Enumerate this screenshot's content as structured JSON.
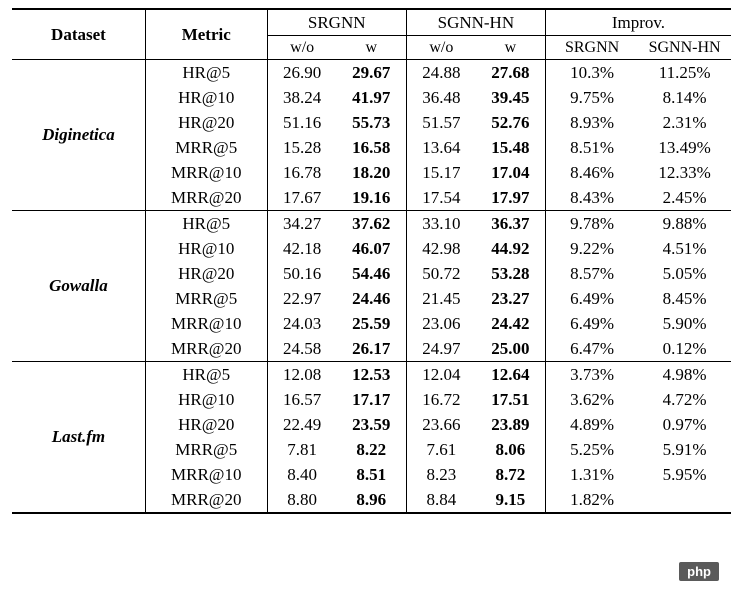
{
  "header": {
    "dataset": "Dataset",
    "metric": "Metric",
    "srgnn": "SRGNN",
    "sgnnhn": "SGNN-HN",
    "improv": "Improv.",
    "wo": "w/o",
    "w": "w",
    "srgnn_lbl": "SRGNN",
    "sgnnhn_lbl": "SGNN-HN"
  },
  "colors": {
    "text": "#000000",
    "background": "#ffffff",
    "rule": "#000000",
    "badge_bg": "#5a5a5a",
    "badge_text": "#ffffff"
  },
  "typography": {
    "font_family": "Georgia, Times New Roman, serif",
    "font_size": 17,
    "dataset_style": "bold italic",
    "value_bold_col": "w"
  },
  "datasets": [
    {
      "name": "Diginetica",
      "rows": [
        {
          "metric": "HR@5",
          "srgnn_wo": "26.90",
          "srgnn_w": "29.67",
          "sgnn_wo": "24.88",
          "sgnn_w": "27.68",
          "imp_srgnn": "10.3%",
          "imp_sgnn": "11.25%"
        },
        {
          "metric": "HR@10",
          "srgnn_wo": "38.24",
          "srgnn_w": "41.97",
          "sgnn_wo": "36.48",
          "sgnn_w": "39.45",
          "imp_srgnn": "9.75%",
          "imp_sgnn": "8.14%"
        },
        {
          "metric": "HR@20",
          "srgnn_wo": "51.16",
          "srgnn_w": "55.73",
          "sgnn_wo": "51.57",
          "sgnn_w": "52.76",
          "imp_srgnn": "8.93%",
          "imp_sgnn": "2.31%"
        },
        {
          "metric": "MRR@5",
          "srgnn_wo": "15.28",
          "srgnn_w": "16.58",
          "sgnn_wo": "13.64",
          "sgnn_w": "15.48",
          "imp_srgnn": "8.51%",
          "imp_sgnn": "13.49%"
        },
        {
          "metric": "MRR@10",
          "srgnn_wo": "16.78",
          "srgnn_w": "18.20",
          "sgnn_wo": "15.17",
          "sgnn_w": "17.04",
          "imp_srgnn": "8.46%",
          "imp_sgnn": "12.33%"
        },
        {
          "metric": "MRR@20",
          "srgnn_wo": "17.67",
          "srgnn_w": "19.16",
          "sgnn_wo": "17.54",
          "sgnn_w": "17.97",
          "imp_srgnn": "8.43%",
          "imp_sgnn": "2.45%"
        }
      ]
    },
    {
      "name": "Gowalla",
      "rows": [
        {
          "metric": "HR@5",
          "srgnn_wo": "34.27",
          "srgnn_w": "37.62",
          "sgnn_wo": "33.10",
          "sgnn_w": "36.37",
          "imp_srgnn": "9.78%",
          "imp_sgnn": "9.88%"
        },
        {
          "metric": "HR@10",
          "srgnn_wo": "42.18",
          "srgnn_w": "46.07",
          "sgnn_wo": "42.98",
          "sgnn_w": "44.92",
          "imp_srgnn": "9.22%",
          "imp_sgnn": "4.51%"
        },
        {
          "metric": "HR@20",
          "srgnn_wo": "50.16",
          "srgnn_w": "54.46",
          "sgnn_wo": "50.72",
          "sgnn_w": "53.28",
          "imp_srgnn": "8.57%",
          "imp_sgnn": "5.05%"
        },
        {
          "metric": "MRR@5",
          "srgnn_wo": "22.97",
          "srgnn_w": "24.46",
          "sgnn_wo": "21.45",
          "sgnn_w": "23.27",
          "imp_srgnn": "6.49%",
          "imp_sgnn": "8.45%"
        },
        {
          "metric": "MRR@10",
          "srgnn_wo": "24.03",
          "srgnn_w": "25.59",
          "sgnn_wo": "23.06",
          "sgnn_w": "24.42",
          "imp_srgnn": "6.49%",
          "imp_sgnn": "5.90%"
        },
        {
          "metric": "MRR@20",
          "srgnn_wo": "24.58",
          "srgnn_w": "26.17",
          "sgnn_wo": "24.97",
          "sgnn_w": "25.00",
          "imp_srgnn": "6.47%",
          "imp_sgnn": "0.12%"
        }
      ]
    },
    {
      "name": "Last.fm",
      "rows": [
        {
          "metric": "HR@5",
          "srgnn_wo": "12.08",
          "srgnn_w": "12.53",
          "sgnn_wo": "12.04",
          "sgnn_w": "12.64",
          "imp_srgnn": "3.73%",
          "imp_sgnn": "4.98%"
        },
        {
          "metric": "HR@10",
          "srgnn_wo": "16.57",
          "srgnn_w": "17.17",
          "sgnn_wo": "16.72",
          "sgnn_w": "17.51",
          "imp_srgnn": "3.62%",
          "imp_sgnn": "4.72%"
        },
        {
          "metric": "HR@20",
          "srgnn_wo": "22.49",
          "srgnn_w": "23.59",
          "sgnn_wo": "23.66",
          "sgnn_w": "23.89",
          "imp_srgnn": "4.89%",
          "imp_sgnn": "0.97%"
        },
        {
          "metric": "MRR@5",
          "srgnn_wo": "7.81",
          "srgnn_w": "8.22",
          "sgnn_wo": "7.61",
          "sgnn_w": "8.06",
          "imp_srgnn": "5.25%",
          "imp_sgnn": "5.91%"
        },
        {
          "metric": "MRR@10",
          "srgnn_wo": "8.40",
          "srgnn_w": "8.51",
          "sgnn_wo": "8.23",
          "sgnn_w": "8.72",
          "imp_srgnn": "1.31%",
          "imp_sgnn": "5.95%"
        },
        {
          "metric": "MRR@20",
          "srgnn_wo": "8.80",
          "srgnn_w": "8.96",
          "sgnn_wo": "8.84",
          "sgnn_w": "9.15",
          "imp_srgnn": "1.82%",
          "imp_sgnn": ""
        }
      ]
    }
  ],
  "footer_badge": "php"
}
